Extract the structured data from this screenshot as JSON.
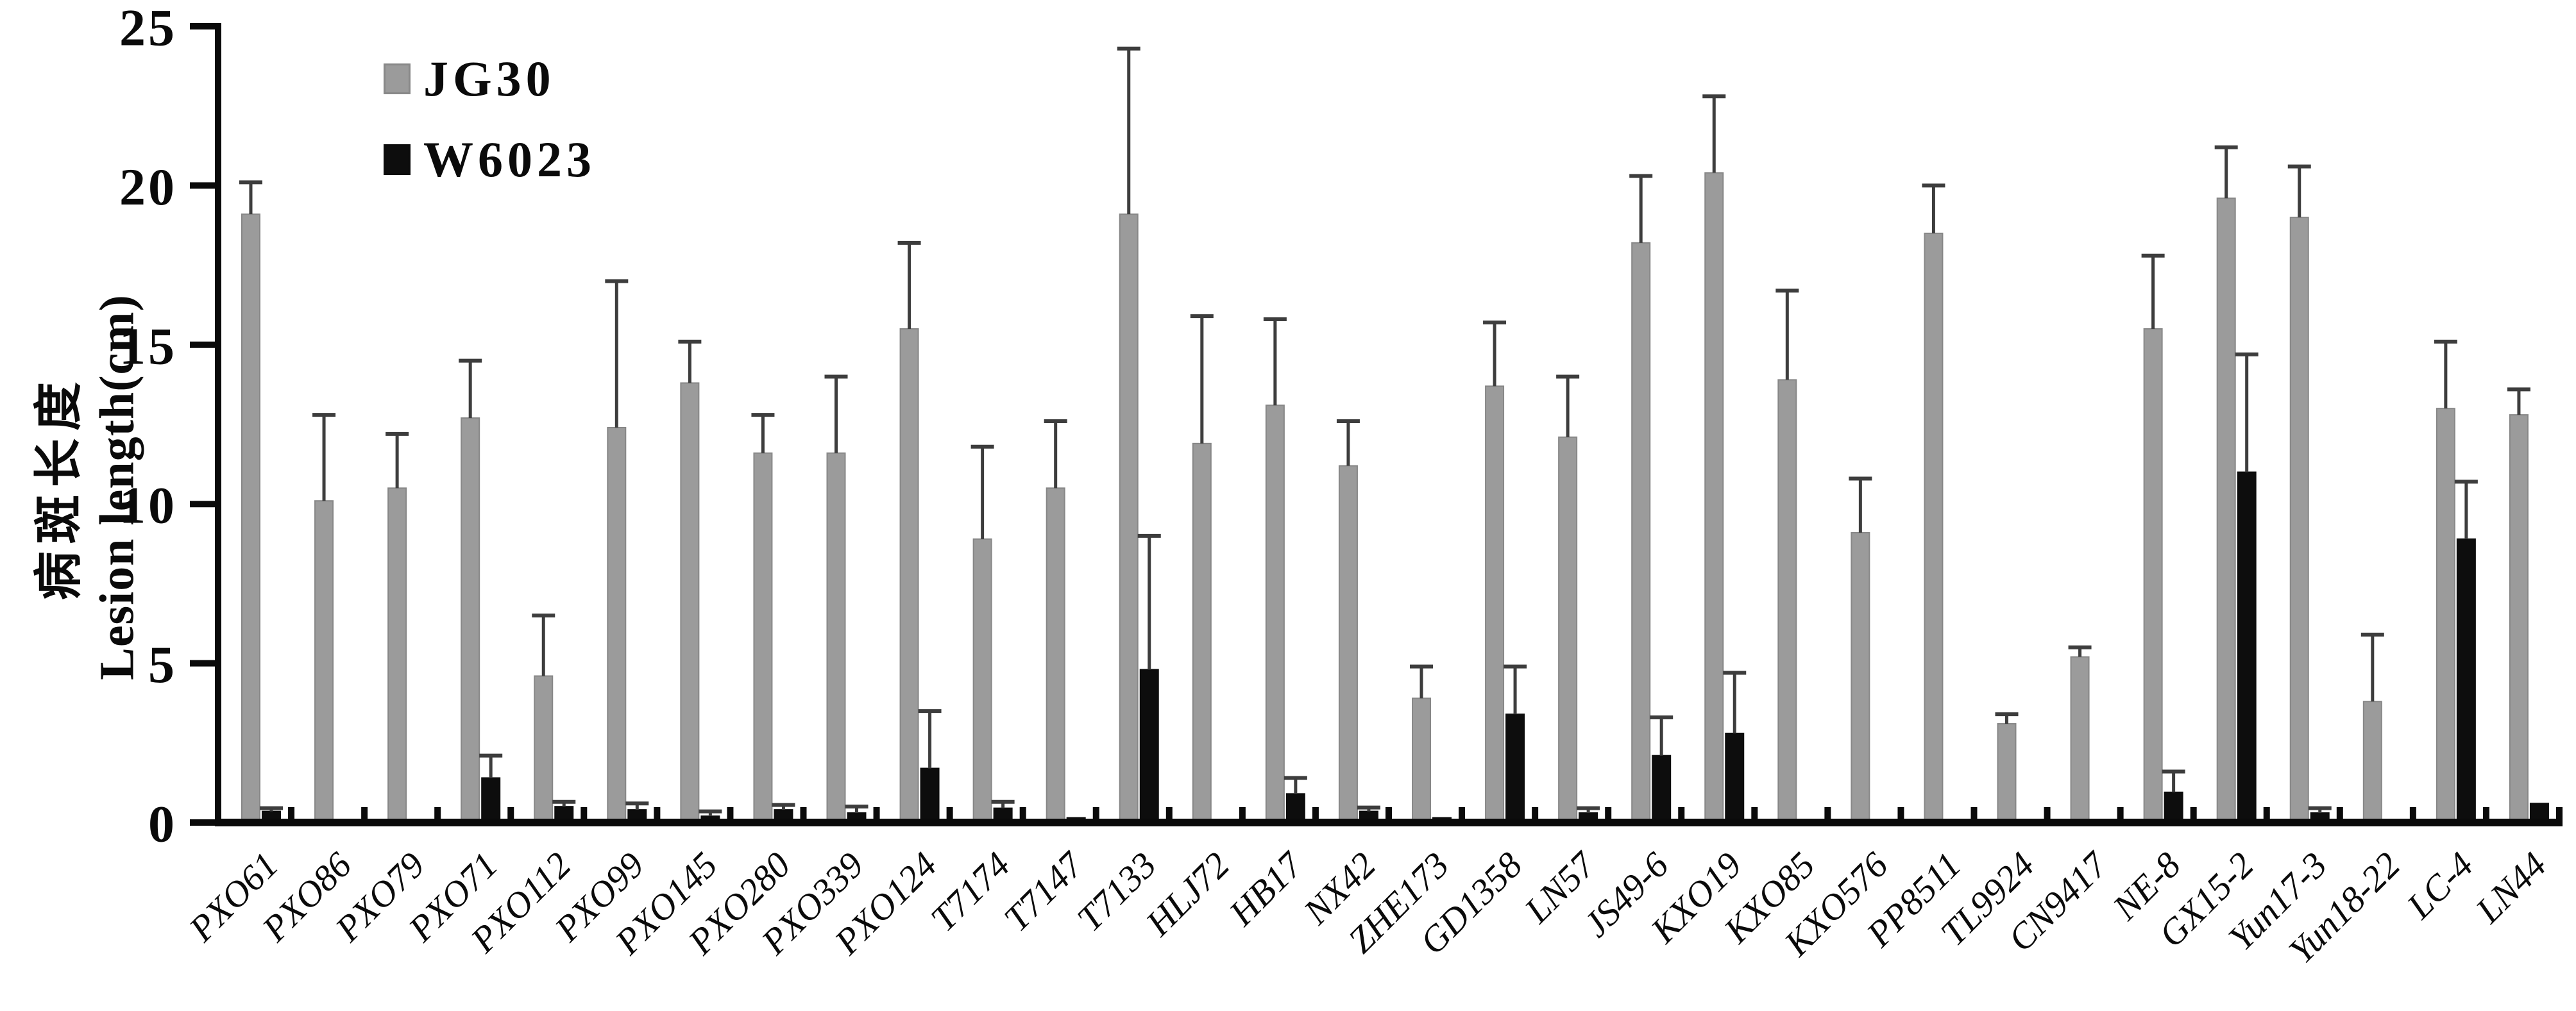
{
  "figure": {
    "y_axis_title_zh": "病斑长度",
    "y_axis_title_en": "Lesion length(cm)"
  },
  "legend": {
    "items": [
      {
        "label": "JG30",
        "color": "#9b9b9b"
      },
      {
        "label": "W6023",
        "color": "#0d0d0d"
      }
    ]
  },
  "chart_data": {
    "type": "bar",
    "title": "",
    "xlabel": "",
    "ylabel": "病斑长度 Lesion length(cm)",
    "ylim": [
      0,
      25
    ],
    "yticks": [
      0,
      5,
      10,
      15,
      20,
      25
    ],
    "grid": false,
    "legend_position": "top-left-inside",
    "error_bars": true,
    "axis_color": "#0a0a0a",
    "error_bar_color": "#3d3d3d",
    "categories": [
      "PXO61",
      "PXO86",
      "PXO79",
      "PXO71",
      "PXO112",
      "PXO99",
      "PXO145",
      "PXO280",
      "PXO339",
      "PXO124",
      "T7174",
      "T7147",
      "T7133",
      "HLJ72",
      "HB17",
      "NX42",
      "ZHE173",
      "GD1358",
      "LN57",
      "JS49-6",
      "KXO19",
      "KXO85",
      "KXO576",
      "PP8511",
      "TL9924",
      "CN9417",
      "NE-8",
      "GX15-2",
      "Yun17-3",
      "Yun18-22",
      "LC-4",
      "LN44"
    ],
    "series": [
      {
        "name": "JG30",
        "color": "#9b9b9b",
        "edge_color": "#878787",
        "values": [
          19.1,
          10.1,
          10.5,
          12.7,
          4.6,
          12.4,
          13.8,
          11.6,
          11.6,
          15.5,
          8.9,
          10.5,
          19.1,
          11.9,
          13.1,
          11.2,
          3.9,
          13.7,
          12.1,
          18.2,
          20.4,
          13.9,
          9.1,
          18.5,
          3.1,
          5.2,
          15.5,
          19.6,
          19.0,
          3.8,
          13.0,
          12.8
        ],
        "errors": [
          1.0,
          2.7,
          1.7,
          1.8,
          1.9,
          4.6,
          1.3,
          1.2,
          2.4,
          2.7,
          2.9,
          2.1,
          5.2,
          4.0,
          2.7,
          1.4,
          1.0,
          2.0,
          1.9,
          2.1,
          2.4,
          2.8,
          1.7,
          1.5,
          0.3,
          0.3,
          2.3,
          1.6,
          1.6,
          2.1,
          2.1,
          0.8
        ]
      },
      {
        "name": "W6023",
        "color": "#0d0d0d",
        "edge_color": "#0d0d0d",
        "values": [
          0.35,
          0.1,
          0.1,
          1.4,
          0.5,
          0.4,
          0.2,
          0.4,
          0.3,
          1.7,
          0.45,
          0.15,
          4.8,
          0.1,
          0.9,
          0.35,
          0.15,
          3.4,
          0.3,
          2.1,
          2.8,
          0.1,
          0.1,
          0.1,
          0.1,
          0.1,
          0.95,
          11.0,
          0.3,
          0.1,
          8.9,
          0.6
        ],
        "errors": [
          0.1,
          0,
          0,
          0.7,
          0.15,
          0.2,
          0.15,
          0.15,
          0.2,
          1.8,
          0.2,
          0,
          4.2,
          0,
          0.5,
          0.12,
          0,
          1.5,
          0.15,
          1.2,
          1.9,
          0,
          0,
          0,
          0,
          0,
          0.65,
          3.7,
          0.15,
          0,
          1.8,
          0
        ]
      }
    ]
  }
}
